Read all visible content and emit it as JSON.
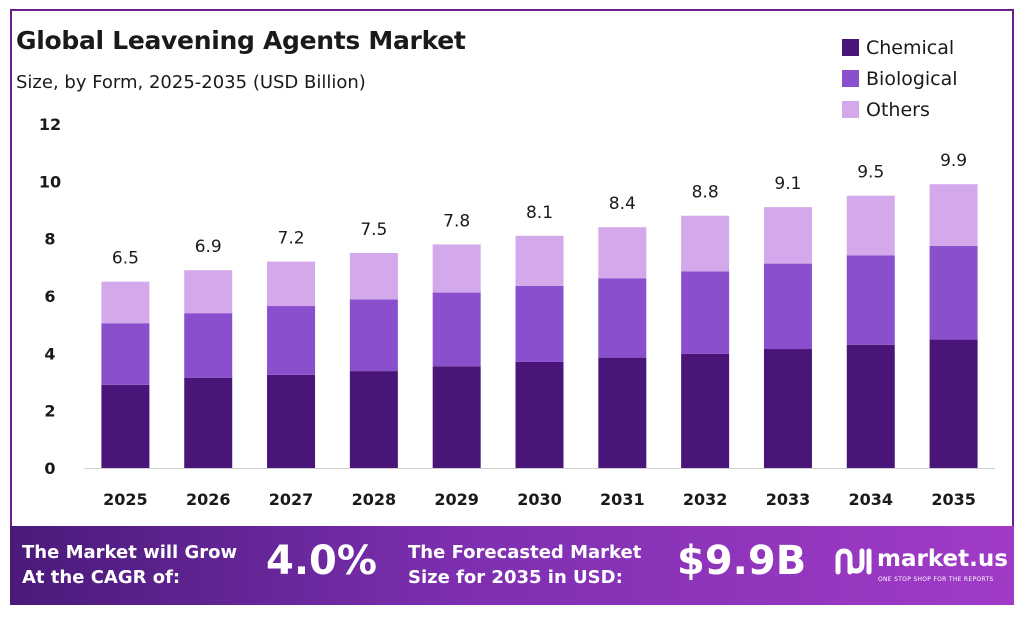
{
  "chart_data": {
    "type": "bar",
    "stacked": true,
    "title": "Global Leavening Agents Market",
    "subtitle": "Size, by Form, 2025-2035 (USD Billion)",
    "categories": [
      "2025",
      "2026",
      "2027",
      "2028",
      "2029",
      "2030",
      "2031",
      "2032",
      "2033",
      "2034",
      "2035"
    ],
    "series": [
      {
        "name": "Chemical",
        "color": "#4a1578",
        "values": [
          2.9,
          3.15,
          3.25,
          3.38,
          3.55,
          3.7,
          3.85,
          3.98,
          4.15,
          4.3,
          4.48
        ]
      },
      {
        "name": "Biological",
        "color": "#8a4fcc",
        "values": [
          2.15,
          2.25,
          2.4,
          2.5,
          2.57,
          2.65,
          2.77,
          2.88,
          2.98,
          3.12,
          3.27
        ]
      },
      {
        "name": "Others",
        "color": "#d3a9eb",
        "values": [
          1.45,
          1.5,
          1.55,
          1.62,
          1.68,
          1.75,
          1.78,
          1.94,
          1.97,
          2.08,
          2.15
        ]
      }
    ],
    "totals": [
      "6.5",
      "6.9",
      "7.2",
      "7.5",
      "7.8",
      "8.1",
      "8.4",
      "8.8",
      "9.1",
      "9.5",
      "9.9"
    ],
    "yticks": [
      "0",
      "2",
      "4",
      "6",
      "8",
      "10",
      "12"
    ],
    "ylim": [
      0,
      12
    ],
    "legend_position": "top-right"
  },
  "footer": {
    "cagr_line1": "The Market will Grow",
    "cagr_line2": "At the CAGR of:",
    "cagr_value": "4.0%",
    "forecast_line1": "The Forecasted Market",
    "forecast_line2": "Size for 2035 in USD:",
    "forecast_value": "$9.9B",
    "brand_name": "market.us",
    "brand_tagline": "ONE STOP SHOP FOR THE REPORTS"
  }
}
